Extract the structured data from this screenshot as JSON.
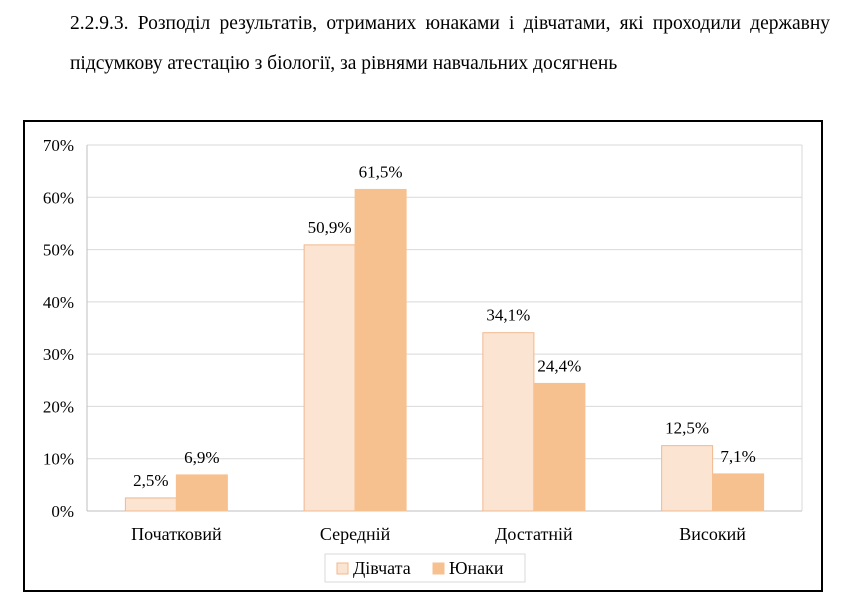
{
  "heading": {
    "number": "2.2.9.3.",
    "text": "Розподіл результатів, отриманих юнаками і дівчатами, які проходили державну підсумкову атестацію з біології, за рівнями навчальних досягнень"
  },
  "colors": {
    "girls": "#fce4d3",
    "girls_border": "#f0b88e",
    "boys": "#f7c08f",
    "grid": "#d9d9d9",
    "axis": "#bfbfbf"
  },
  "chart_data": {
    "type": "bar",
    "categories": [
      "Початковий",
      "Середній",
      "Достатній",
      "Високий"
    ],
    "series": [
      {
        "name": "Дівчата",
        "values": [
          2.5,
          50.9,
          34.1,
          12.5
        ],
        "labels": [
          "2,5%",
          "50,9%",
          "34,1%",
          "12,5%"
        ]
      },
      {
        "name": "Юнаки",
        "values": [
          6.9,
          61.5,
          24.4,
          7.1
        ],
        "labels": [
          "6,9%",
          "61,5%",
          "24,4%",
          "7,1%"
        ]
      }
    ],
    "yticks": [
      "0%",
      "10%",
      "20%",
      "30%",
      "40%",
      "50%",
      "60%",
      "70%"
    ],
    "ylim": [
      0,
      70
    ],
    "grid": true,
    "legend_position": "bottom"
  }
}
